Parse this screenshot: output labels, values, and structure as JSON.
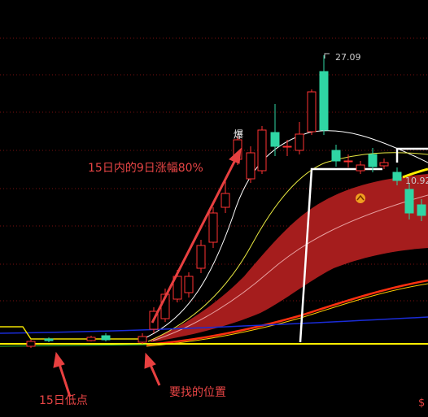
{
  "labels": {
    "high_price": "27.09",
    "right_price": "10.92",
    "burst": "爆",
    "rise_note": "15日内的9日涨幅80%",
    "low_note": "15日低点",
    "target_note": "要找的位置",
    "currency": "$"
  }
}
